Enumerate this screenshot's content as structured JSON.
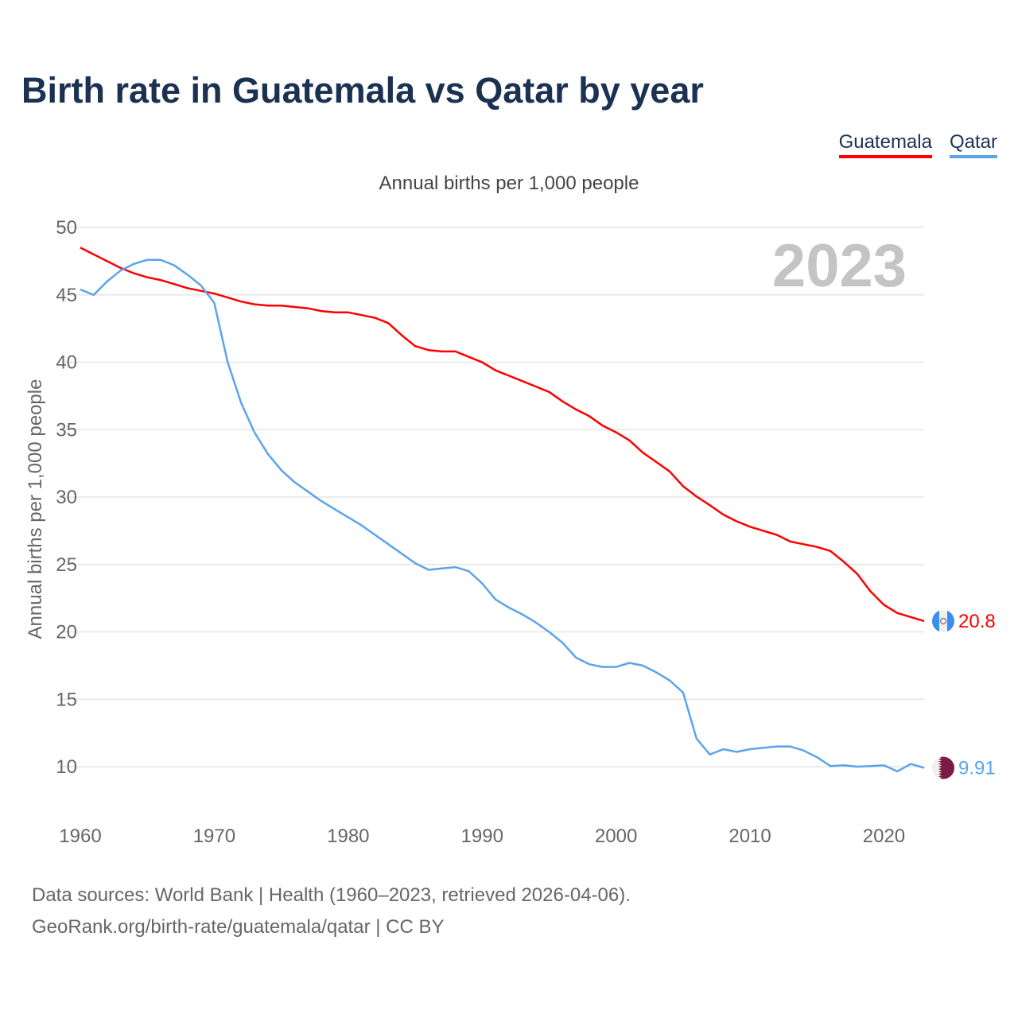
{
  "title": "Birth rate in Guatemala vs Qatar by year",
  "subtitle": "Annual births per 1,000 people",
  "year_watermark": "2023",
  "footer": {
    "line1": "Data sources: World Bank | Health (1960–2023, retrieved 2026-04-06).",
    "line2": "GeoRank.org/birth-rate/guatemala/qatar | CC BY"
  },
  "chart_data": {
    "type": "line",
    "title": "Birth rate in Guatemala vs Qatar by year",
    "xlabel": "",
    "ylabel": "Annual births per 1,000 people",
    "xlim": [
      1960,
      2023
    ],
    "ylim": [
      10,
      50
    ],
    "xticks": [
      1960,
      1970,
      1980,
      1990,
      2000,
      2010,
      2020
    ],
    "yticks": [
      10,
      15,
      20,
      25,
      30,
      35,
      40,
      45,
      50
    ],
    "grid": true,
    "legend_position": "top-right",
    "x_start": 1960,
    "series": [
      {
        "name": "Guatemala",
        "color": "#ff0000",
        "flag": "guatemala-flag",
        "end_label": "20.8",
        "values": [
          48.5,
          48.0,
          47.5,
          47.0,
          46.6,
          46.3,
          46.1,
          45.8,
          45.5,
          45.3,
          45.1,
          44.8,
          44.5,
          44.3,
          44.2,
          44.2,
          44.1,
          44.0,
          43.8,
          43.7,
          43.7,
          43.5,
          43.3,
          42.9,
          42.0,
          41.2,
          40.9,
          40.8,
          40.8,
          40.4,
          40.0,
          39.4,
          39.0,
          38.6,
          38.2,
          37.8,
          37.1,
          36.5,
          36.0,
          35.3,
          34.8,
          34.2,
          33.3,
          32.6,
          31.9,
          30.8,
          30.05,
          29.4,
          28.7,
          28.2,
          27.8,
          27.5,
          27.2,
          26.7,
          26.5,
          26.3,
          26.0,
          25.2,
          24.3,
          23.0,
          22.0,
          21.4,
          21.1,
          20.8
        ]
      },
      {
        "name": "Qatar",
        "color": "#5ba4ec",
        "flag": "qatar-flag",
        "end_label": "9.91",
        "values": [
          45.4,
          45.0,
          46.0,
          46.8,
          47.3,
          47.6,
          47.6,
          47.2,
          46.5,
          45.7,
          44.4,
          40.0,
          37.0,
          34.8,
          33.2,
          32.0,
          31.1,
          30.4,
          29.7,
          29.1,
          28.5,
          27.9,
          27.2,
          26.5,
          25.8,
          25.1,
          24.6,
          24.7,
          24.8,
          24.5,
          23.6,
          22.4,
          21.8,
          21.3,
          20.7,
          20.0,
          19.2,
          18.1,
          17.6,
          17.4,
          17.4,
          17.7,
          17.5,
          17.0,
          16.4,
          15.5,
          12.1,
          10.9,
          11.3,
          11.1,
          11.3,
          11.4,
          11.5,
          11.5,
          11.2,
          10.7,
          10.05,
          10.1,
          10.0,
          10.05,
          10.1,
          9.65,
          10.2,
          9.91
        ]
      }
    ]
  }
}
